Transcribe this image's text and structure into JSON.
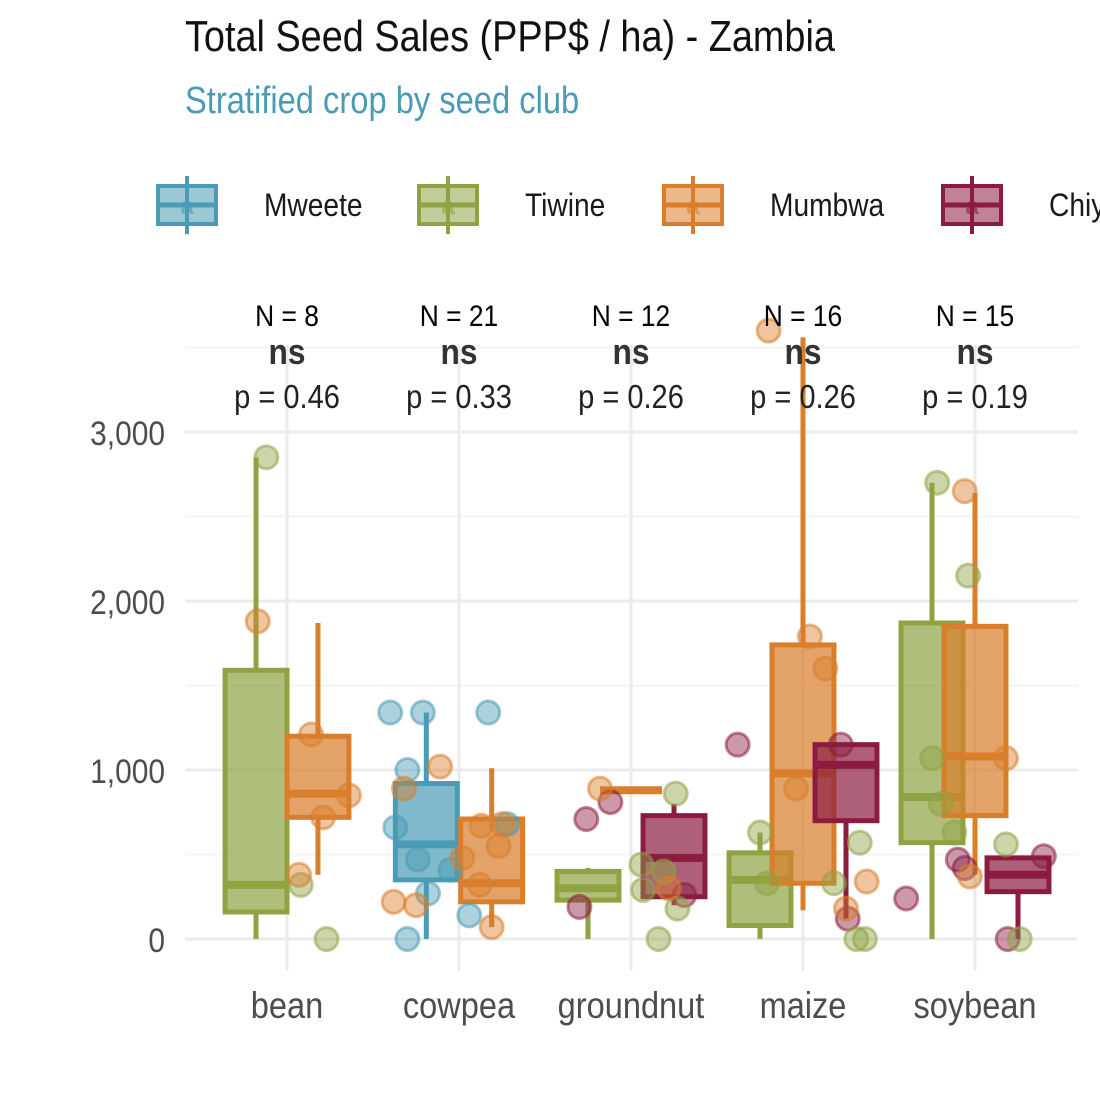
{
  "title": "Total Seed Sales (PPP$ / ha) - Zambia",
  "subtitle": "Stratified crop by seed club",
  "colors": {
    "subtitle": "#4a9bb5",
    "Mweete": "#4a9bb5",
    "Tiwine": "#8fa343",
    "Mumbwa": "#d97e2a",
    "Chiyota": "#8b1c40",
    "grid": "#ebebeb",
    "axis_text": "#4d4d4d"
  },
  "chart_data": {
    "type": "boxplot",
    "title": "Total Seed Sales (PPP$ / ha) - Zambia",
    "subtitle": "Stratified crop by seed club",
    "xlabel": "",
    "ylabel": "",
    "ylim": [
      -50,
      3600
    ],
    "y_ticks": [
      0,
      1000,
      2000,
      3000
    ],
    "y_tick_labels": [
      "0",
      "1,000",
      "2,000",
      "3,000"
    ],
    "grid": true,
    "legend_position": "top",
    "legend": [
      "Mweete",
      "Tiwine",
      "Mumbwa",
      "Chiy"
    ],
    "categories": [
      "bean",
      "cowpea",
      "groundnut",
      "maize",
      "soybean"
    ],
    "annotations": [
      {
        "category": "bean",
        "n": "N = 8",
        "sig": "ns",
        "p": "p = 0.46"
      },
      {
        "category": "cowpea",
        "n": "N = 21",
        "sig": "ns",
        "p": "p = 0.33"
      },
      {
        "category": "groundnut",
        "n": "N = 12",
        "sig": "ns",
        "p": "p = 0.26"
      },
      {
        "category": "maize",
        "n": "N = 16",
        "sig": "ns",
        "p": "p = 0.26"
      },
      {
        "category": "soybean",
        "n": "N = 15",
        "sig": "ns",
        "p": "p = 0.19"
      }
    ],
    "boxes": [
      {
        "category": "bean",
        "club": "Tiwine",
        "offset": -0.18,
        "min": 0,
        "q1": 160,
        "median": 320,
        "q3": 1590,
        "max": 2850
      },
      {
        "category": "bean",
        "club": "Mumbwa",
        "offset": 0.18,
        "min": 380,
        "q1": 720,
        "median": 860,
        "q3": 1200,
        "max": 1870
      },
      {
        "category": "cowpea",
        "club": "Mweete",
        "offset": -0.19,
        "min": 0,
        "q1": 350,
        "median": 560,
        "q3": 920,
        "max": 1340
      },
      {
        "category": "cowpea",
        "club": "Mumbwa",
        "offset": 0.19,
        "min": 70,
        "q1": 220,
        "median": 330,
        "q3": 710,
        "max": 1010
      },
      {
        "category": "groundnut",
        "club": "Tiwine",
        "offset": -0.25,
        "min": 0,
        "q1": 230,
        "median": 300,
        "q3": 400,
        "max": 420
      },
      {
        "category": "groundnut",
        "club": "Mumbwa",
        "offset": 0,
        "min": 880,
        "q1": 880,
        "median": 880,
        "q3": 880,
        "max": 900
      },
      {
        "category": "groundnut",
        "club": "Chiyota",
        "offset": 0.25,
        "min": 200,
        "q1": 250,
        "median": 480,
        "q3": 730,
        "max": 800
      },
      {
        "category": "maize",
        "club": "Tiwine",
        "offset": -0.25,
        "min": 0,
        "q1": 80,
        "median": 350,
        "q3": 510,
        "max": 630
      },
      {
        "category": "maize",
        "club": "Mumbwa",
        "offset": 0,
        "min": 170,
        "q1": 330,
        "median": 980,
        "q3": 1740,
        "max": 3560
      },
      {
        "category": "maize",
        "club": "Chiyota",
        "offset": 0.25,
        "min": 120,
        "q1": 700,
        "median": 1030,
        "q3": 1150,
        "max": 1150
      },
      {
        "category": "soybean",
        "club": "Tiwine",
        "offset": -0.25,
        "min": 0,
        "q1": 570,
        "median": 840,
        "q3": 1870,
        "max": 2700
      },
      {
        "category": "soybean",
        "club": "Mumbwa",
        "offset": 0,
        "min": 380,
        "q1": 730,
        "median": 1080,
        "q3": 1850,
        "max": 2640
      },
      {
        "category": "soybean",
        "club": "Chiyota",
        "offset": 0.25,
        "min": 0,
        "q1": 280,
        "median": 380,
        "q3": 480,
        "max": 480
      }
    ],
    "points": [
      {
        "category": "bean",
        "club": "Tiwine",
        "x": -0.12,
        "y": 2850
      },
      {
        "category": "bean",
        "club": "Tiwine",
        "x": 0.08,
        "y": 320
      },
      {
        "category": "bean",
        "club": "Tiwine",
        "x": 0.23,
        "y": 0
      },
      {
        "category": "bean",
        "club": "Mumbwa",
        "x": -0.17,
        "y": 1880
      },
      {
        "category": "bean",
        "club": "Mumbwa",
        "x": 0.14,
        "y": 1210
      },
      {
        "category": "bean",
        "club": "Mumbwa",
        "x": 0.36,
        "y": 850
      },
      {
        "category": "bean",
        "club": "Mumbwa",
        "x": 0.21,
        "y": 720
      },
      {
        "category": "bean",
        "club": "Mumbwa",
        "x": 0.07,
        "y": 380
      },
      {
        "category": "cowpea",
        "club": "Mweete",
        "x": -0.4,
        "y": 1340
      },
      {
        "category": "cowpea",
        "club": "Mweete",
        "x": -0.21,
        "y": 1340
      },
      {
        "category": "cowpea",
        "club": "Mweete",
        "x": 0.17,
        "y": 1340
      },
      {
        "category": "cowpea",
        "club": "Mweete",
        "x": -0.3,
        "y": 1000
      },
      {
        "category": "cowpea",
        "club": "Mweete",
        "x": -0.37,
        "y": 660
      },
      {
        "category": "cowpea",
        "club": "Mweete",
        "x": -0.24,
        "y": 470
      },
      {
        "category": "cowpea",
        "club": "Mweete",
        "x": -0.18,
        "y": 270
      },
      {
        "category": "cowpea",
        "club": "Mweete",
        "x": -0.3,
        "y": 0
      },
      {
        "category": "cowpea",
        "club": "Mweete",
        "x": 0.06,
        "y": 140
      },
      {
        "category": "cowpea",
        "club": "Mweete",
        "x": -0.05,
        "y": 410
      },
      {
        "category": "cowpea",
        "club": "Mweete",
        "x": 0.28,
        "y": 680
      },
      {
        "category": "cowpea",
        "club": "Mumbwa",
        "x": -0.38,
        "y": 220
      },
      {
        "category": "cowpea",
        "club": "Mumbwa",
        "x": -0.25,
        "y": 200
      },
      {
        "category": "cowpea",
        "club": "Mumbwa",
        "x": -0.32,
        "y": 890
      },
      {
        "category": "cowpea",
        "club": "Mumbwa",
        "x": -0.11,
        "y": 1020
      },
      {
        "category": "cowpea",
        "club": "Mumbwa",
        "x": 0.02,
        "y": 480
      },
      {
        "category": "cowpea",
        "club": "Mumbwa",
        "x": 0.12,
        "y": 320
      },
      {
        "category": "cowpea",
        "club": "Mumbwa",
        "x": 0.23,
        "y": 550
      },
      {
        "category": "cowpea",
        "club": "Mumbwa",
        "x": 0.13,
        "y": 670
      },
      {
        "category": "cowpea",
        "club": "Mumbwa",
        "x": 0.19,
        "y": 70
      },
      {
        "category": "cowpea",
        "club": "Mumbwa",
        "x": 0.25,
        "y": 680
      },
      {
        "category": "groundnut",
        "club": "Chiyota",
        "x": -0.26,
        "y": 710
      },
      {
        "category": "groundnut",
        "club": "Chiyota",
        "x": -0.12,
        "y": 810
      },
      {
        "category": "groundnut",
        "club": "Chiyota",
        "x": -0.3,
        "y": 190
      },
      {
        "category": "groundnut",
        "club": "Chiyota",
        "x": 0.31,
        "y": 260
      },
      {
        "category": "groundnut",
        "club": "Mumbwa",
        "x": -0.18,
        "y": 890
      },
      {
        "category": "groundnut",
        "club": "Tiwine",
        "x": 0.06,
        "y": 440
      },
      {
        "category": "groundnut",
        "club": "Tiwine",
        "x": 0.07,
        "y": 290
      },
      {
        "category": "groundnut",
        "club": "Tiwine",
        "x": 0.16,
        "y": 0
      },
      {
        "category": "groundnut",
        "club": "Tiwine",
        "x": 0.26,
        "y": 860
      },
      {
        "category": "groundnut",
        "club": "Tiwine",
        "x": 0.27,
        "y": 180
      },
      {
        "category": "groundnut",
        "club": "Tiwine",
        "x": 0.19,
        "y": 400
      },
      {
        "category": "groundnut",
        "club": "Mumbwa",
        "x": 0.22,
        "y": 300
      },
      {
        "category": "maize",
        "club": "Chiyota",
        "x": -0.38,
        "y": 1150
      },
      {
        "category": "maize",
        "club": "Chiyota",
        "x": 0.22,
        "y": 1150
      },
      {
        "category": "maize",
        "club": "Chiyota",
        "x": 0.26,
        "y": 120
      },
      {
        "category": "maize",
        "club": "Mumbwa",
        "x": -0.2,
        "y": 3600
      },
      {
        "category": "maize",
        "club": "Mumbwa",
        "x": 0.04,
        "y": 1790
      },
      {
        "category": "maize",
        "club": "Mumbwa",
        "x": 0.13,
        "y": 1600
      },
      {
        "category": "maize",
        "club": "Mumbwa",
        "x": -0.04,
        "y": 890
      },
      {
        "category": "maize",
        "club": "Mumbwa",
        "x": 0.25,
        "y": 180
      },
      {
        "category": "maize",
        "club": "Mumbwa",
        "x": 0.37,
        "y": 340
      },
      {
        "category": "maize",
        "club": "Tiwine",
        "x": -0.25,
        "y": 630
      },
      {
        "category": "maize",
        "club": "Tiwine",
        "x": -0.21,
        "y": 330
      },
      {
        "category": "maize",
        "club": "Tiwine",
        "x": 0.18,
        "y": 330
      },
      {
        "category": "maize",
        "club": "Tiwine",
        "x": 0.33,
        "y": 570
      },
      {
        "category": "maize",
        "club": "Tiwine",
        "x": 0.31,
        "y": 0
      },
      {
        "category": "maize",
        "club": "Tiwine",
        "x": 0.36,
        "y": 0
      },
      {
        "category": "soybean",
        "club": "Chiyota",
        "x": -0.4,
        "y": 240
      },
      {
        "category": "soybean",
        "club": "Chiyota",
        "x": -0.1,
        "y": 470
      },
      {
        "category": "soybean",
        "club": "Chiyota",
        "x": -0.06,
        "y": 420
      },
      {
        "category": "soybean",
        "club": "Chiyota",
        "x": 0.19,
        "y": 0
      },
      {
        "category": "soybean",
        "club": "Chiyota",
        "x": 0.4,
        "y": 490
      },
      {
        "category": "soybean",
        "club": "Tiwine",
        "x": -0.22,
        "y": 2700
      },
      {
        "category": "soybean",
        "club": "Tiwine",
        "x": -0.25,
        "y": 1070
      },
      {
        "category": "soybean",
        "club": "Tiwine",
        "x": -0.2,
        "y": 800
      },
      {
        "category": "soybean",
        "club": "Tiwine",
        "x": -0.12,
        "y": 630
      },
      {
        "category": "soybean",
        "club": "Tiwine",
        "x": -0.04,
        "y": 2150
      },
      {
        "category": "soybean",
        "club": "Tiwine",
        "x": 0.18,
        "y": 560
      },
      {
        "category": "soybean",
        "club": "Tiwine",
        "x": 0.26,
        "y": 0
      },
      {
        "category": "soybean",
        "club": "Mumbwa",
        "x": -0.06,
        "y": 2650
      },
      {
        "category": "soybean",
        "club": "Mumbwa",
        "x": 0.18,
        "y": 1070
      },
      {
        "category": "soybean",
        "club": "Mumbwa",
        "x": -0.03,
        "y": 370
      }
    ]
  }
}
